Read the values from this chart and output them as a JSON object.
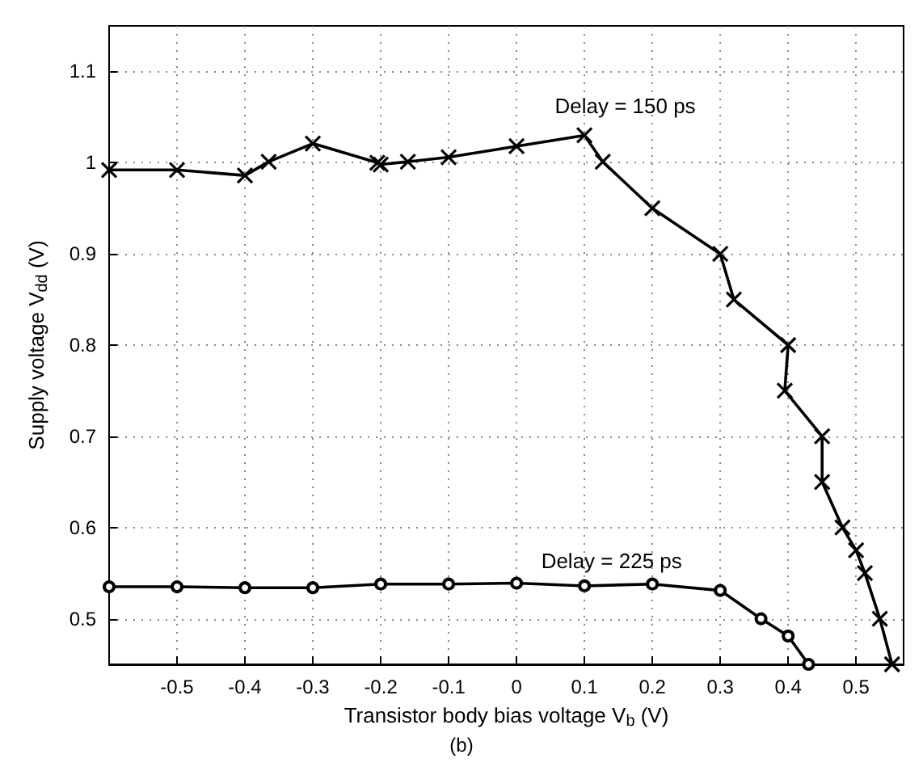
{
  "chart_data": {
    "type": "line",
    "xlabel": "Transistor body bias voltage V$_{b}$ (V)",
    "ylabel": "Supply voltage V$_{dd}$ (V)",
    "xlim": [
      -0.6,
      0.57
    ],
    "ylim": [
      0.45,
      1.15
    ],
    "xticks": [
      -0.5,
      -0.4,
      -0.3,
      -0.2,
      -0.1,
      0,
      0.1,
      0.2,
      0.3,
      0.4,
      0.5
    ],
    "yticks": [
      0.5,
      0.6,
      0.7,
      0.8,
      0.9,
      {
        "value": 1.0,
        "label": "1"
      },
      1.1
    ],
    "grid": true,
    "line_style": "solid",
    "series": [
      {
        "color": "#000000",
        "marker": "cross",
        "x": [
          -0.6,
          -0.5,
          -0.4,
          -0.365,
          -0.3,
          -0.205,
          -0.2,
          -0.16,
          -0.1,
          0,
          0.1,
          0.127,
          0.2,
          0.3,
          0.32,
          0.4,
          0.395,
          0.45,
          0.45,
          0.48,
          0.5,
          0.513,
          0.535,
          0.553
        ],
        "values": [
          0.992,
          0.992,
          0.986,
          1.001,
          1.021,
          1.0,
          0.998,
          1.001,
          1.006,
          1.018,
          1.03,
          1.001,
          0.95,
          0.9,
          0.85,
          0.8,
          0.75,
          0.7,
          0.65,
          0.6,
          0.575,
          0.55,
          0.5,
          0.45
        ]
      },
      {
        "color": "#000000",
        "marker": "circle",
        "x": [
          -0.6,
          -0.5,
          -0.4,
          -0.3,
          -0.2,
          -0.1,
          0,
          0.1,
          0.2,
          0.3,
          0.36,
          0.4,
          0.43
        ],
        "values": [
          0.535,
          0.535,
          0.534,
          0.534,
          0.538,
          0.538,
          0.539,
          0.536,
          0.538,
          0.531,
          0.5,
          0.481,
          0.45
        ]
      }
    ],
    "annotations": [
      "Delay = 150 ps",
      "Delay = 225 ps",
      "(b)"
    ]
  }
}
